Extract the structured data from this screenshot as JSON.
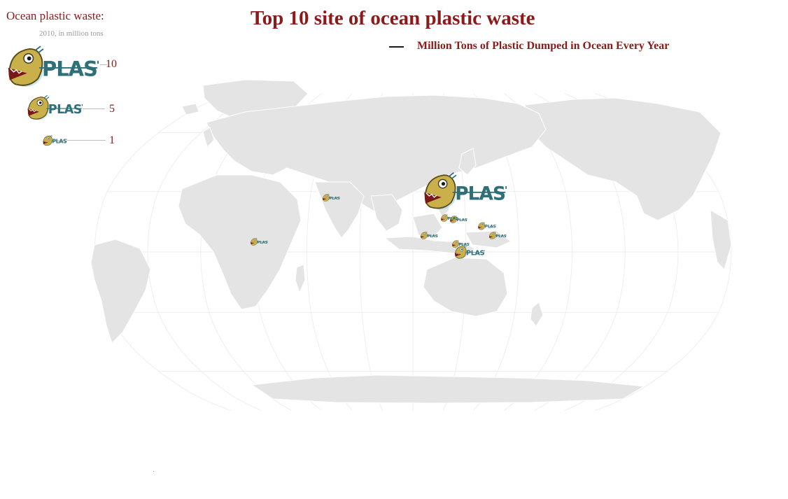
{
  "title": "Top 10 site of ocean plastic waste",
  "legend": {
    "title": "Ocean plastic waste:",
    "subtitle": "2010, in million tons",
    "icon_label": "PLASTIC",
    "scale_values": [
      "10",
      "5",
      "1"
    ]
  },
  "series_legend": {
    "label": "Million Tons of Plastic Dumped in Ocean Every Year",
    "color": "#1a1a1a"
  },
  "colors": {
    "title": "#8b1a1a",
    "land": "#e4e4e4",
    "graticule": "#eeeeee",
    "fish_body": "#c9b04a",
    "fish_lettering": "#2f6f78"
  },
  "map": {
    "projection": "robinson",
    "graticule": true
  },
  "chart_data": {
    "type": "scatter",
    "series": [
      {
        "name": "Million Tons of Plastic Dumped in Ocean Every Year",
        "points": [
          {
            "lon": 110,
            "lat": 30,
            "value": 8.8
          },
          {
            "lon": 112,
            "lat": 0,
            "value": 3.2
          },
          {
            "lon": 122,
            "lat": 13,
            "value": 1.9
          },
          {
            "lon": 106,
            "lat": 16,
            "value": 1.8
          },
          {
            "lon": 128,
            "lat": 8,
            "value": 1.5
          },
          {
            "lon": 101,
            "lat": 17,
            "value": 1.0
          },
          {
            "lon": 107,
            "lat": 4,
            "value": 0.9
          },
          {
            "lon": 32,
            "lat": 27,
            "value": 0.8
          },
          {
            "lon": 89,
            "lat": 8,
            "value": 1.3
          },
          {
            "lon": -7,
            "lat": 5,
            "value": 0.8
          }
        ]
      }
    ]
  }
}
